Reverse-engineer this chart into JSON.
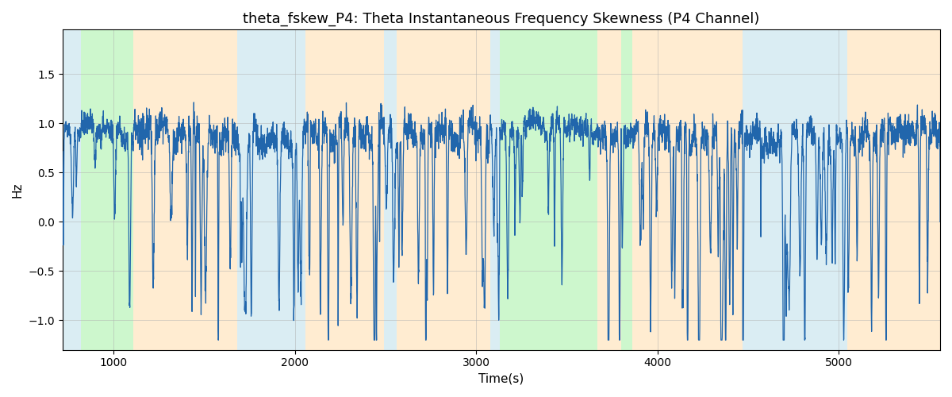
{
  "title": "theta_fskew_P4: Theta Instantaneous Frequency Skewness (P4 Channel)",
  "xlabel": "Time(s)",
  "ylabel": "Hz",
  "xlim": [
    718,
    5560
  ],
  "ylim": [
    -1.3,
    1.95
  ],
  "background_bands": [
    {
      "xmin": 718,
      "xmax": 820,
      "color": "#add8e6",
      "alpha": 0.45
    },
    {
      "xmin": 820,
      "xmax": 1110,
      "color": "#90ee90",
      "alpha": 0.45
    },
    {
      "xmin": 1110,
      "xmax": 1680,
      "color": "#ffd59a",
      "alpha": 0.45
    },
    {
      "xmin": 1680,
      "xmax": 2060,
      "color": "#add8e6",
      "alpha": 0.45
    },
    {
      "xmin": 2060,
      "xmax": 2490,
      "color": "#ffd59a",
      "alpha": 0.45
    },
    {
      "xmin": 2490,
      "xmax": 2560,
      "color": "#add8e6",
      "alpha": 0.45
    },
    {
      "xmin": 2560,
      "xmax": 3080,
      "color": "#ffd59a",
      "alpha": 0.45
    },
    {
      "xmin": 3080,
      "xmax": 3130,
      "color": "#add8e6",
      "alpha": 0.45
    },
    {
      "xmin": 3130,
      "xmax": 3670,
      "color": "#90ee90",
      "alpha": 0.45
    },
    {
      "xmin": 3670,
      "xmax": 3800,
      "color": "#ffd59a",
      "alpha": 0.45
    },
    {
      "xmin": 3800,
      "xmax": 3860,
      "color": "#90ee90",
      "alpha": 0.45
    },
    {
      "xmin": 3860,
      "xmax": 4470,
      "color": "#ffd59a",
      "alpha": 0.45
    },
    {
      "xmin": 4470,
      "xmax": 5050,
      "color": "#add8e6",
      "alpha": 0.45
    },
    {
      "xmin": 5050,
      "xmax": 5560,
      "color": "#ffd59a",
      "alpha": 0.45
    }
  ],
  "line_color": "#2166ac",
  "line_width": 0.9,
  "grid_color": "#b0b0b0",
  "grid_alpha": 0.5,
  "title_fontsize": 13,
  "axis_label_fontsize": 11,
  "yticks": [
    -1.0,
    -0.5,
    0.0,
    0.5,
    1.0,
    1.5
  ],
  "xticks": [
    1000,
    2000,
    3000,
    4000,
    5000
  ]
}
